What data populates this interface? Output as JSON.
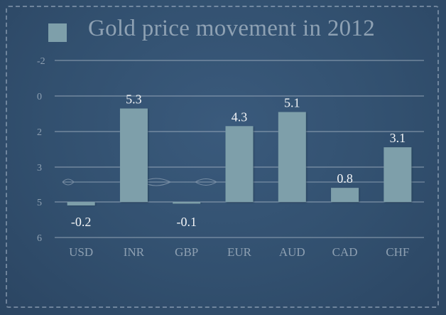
{
  "colors": {
    "background": "#33506f",
    "bar": "#7e9faa",
    "grid": "#a9b7c6",
    "text": "#8ea0b2",
    "data_label": "#f2f4f6"
  },
  "chart_data": {
    "type": "bar",
    "title": "Gold price movement in 2012",
    "legend": "top-left",
    "legend_marker": "square",
    "grid": true,
    "categories": [
      "USD",
      "INR",
      "GBP",
      "EUR",
      "AUD",
      "CAD",
      "CHF"
    ],
    "values": [
      -0.2,
      5.3,
      -0.1,
      4.3,
      5.1,
      0.8,
      3.1
    ],
    "data_labels": [
      "-0.2",
      "5.3",
      "-0.1",
      "4.3",
      "5.1",
      "0.8",
      "3.1"
    ],
    "y_ticks": [
      -2,
      0,
      2,
      3,
      5,
      6
    ],
    "ylim": [
      -2,
      6
    ]
  }
}
